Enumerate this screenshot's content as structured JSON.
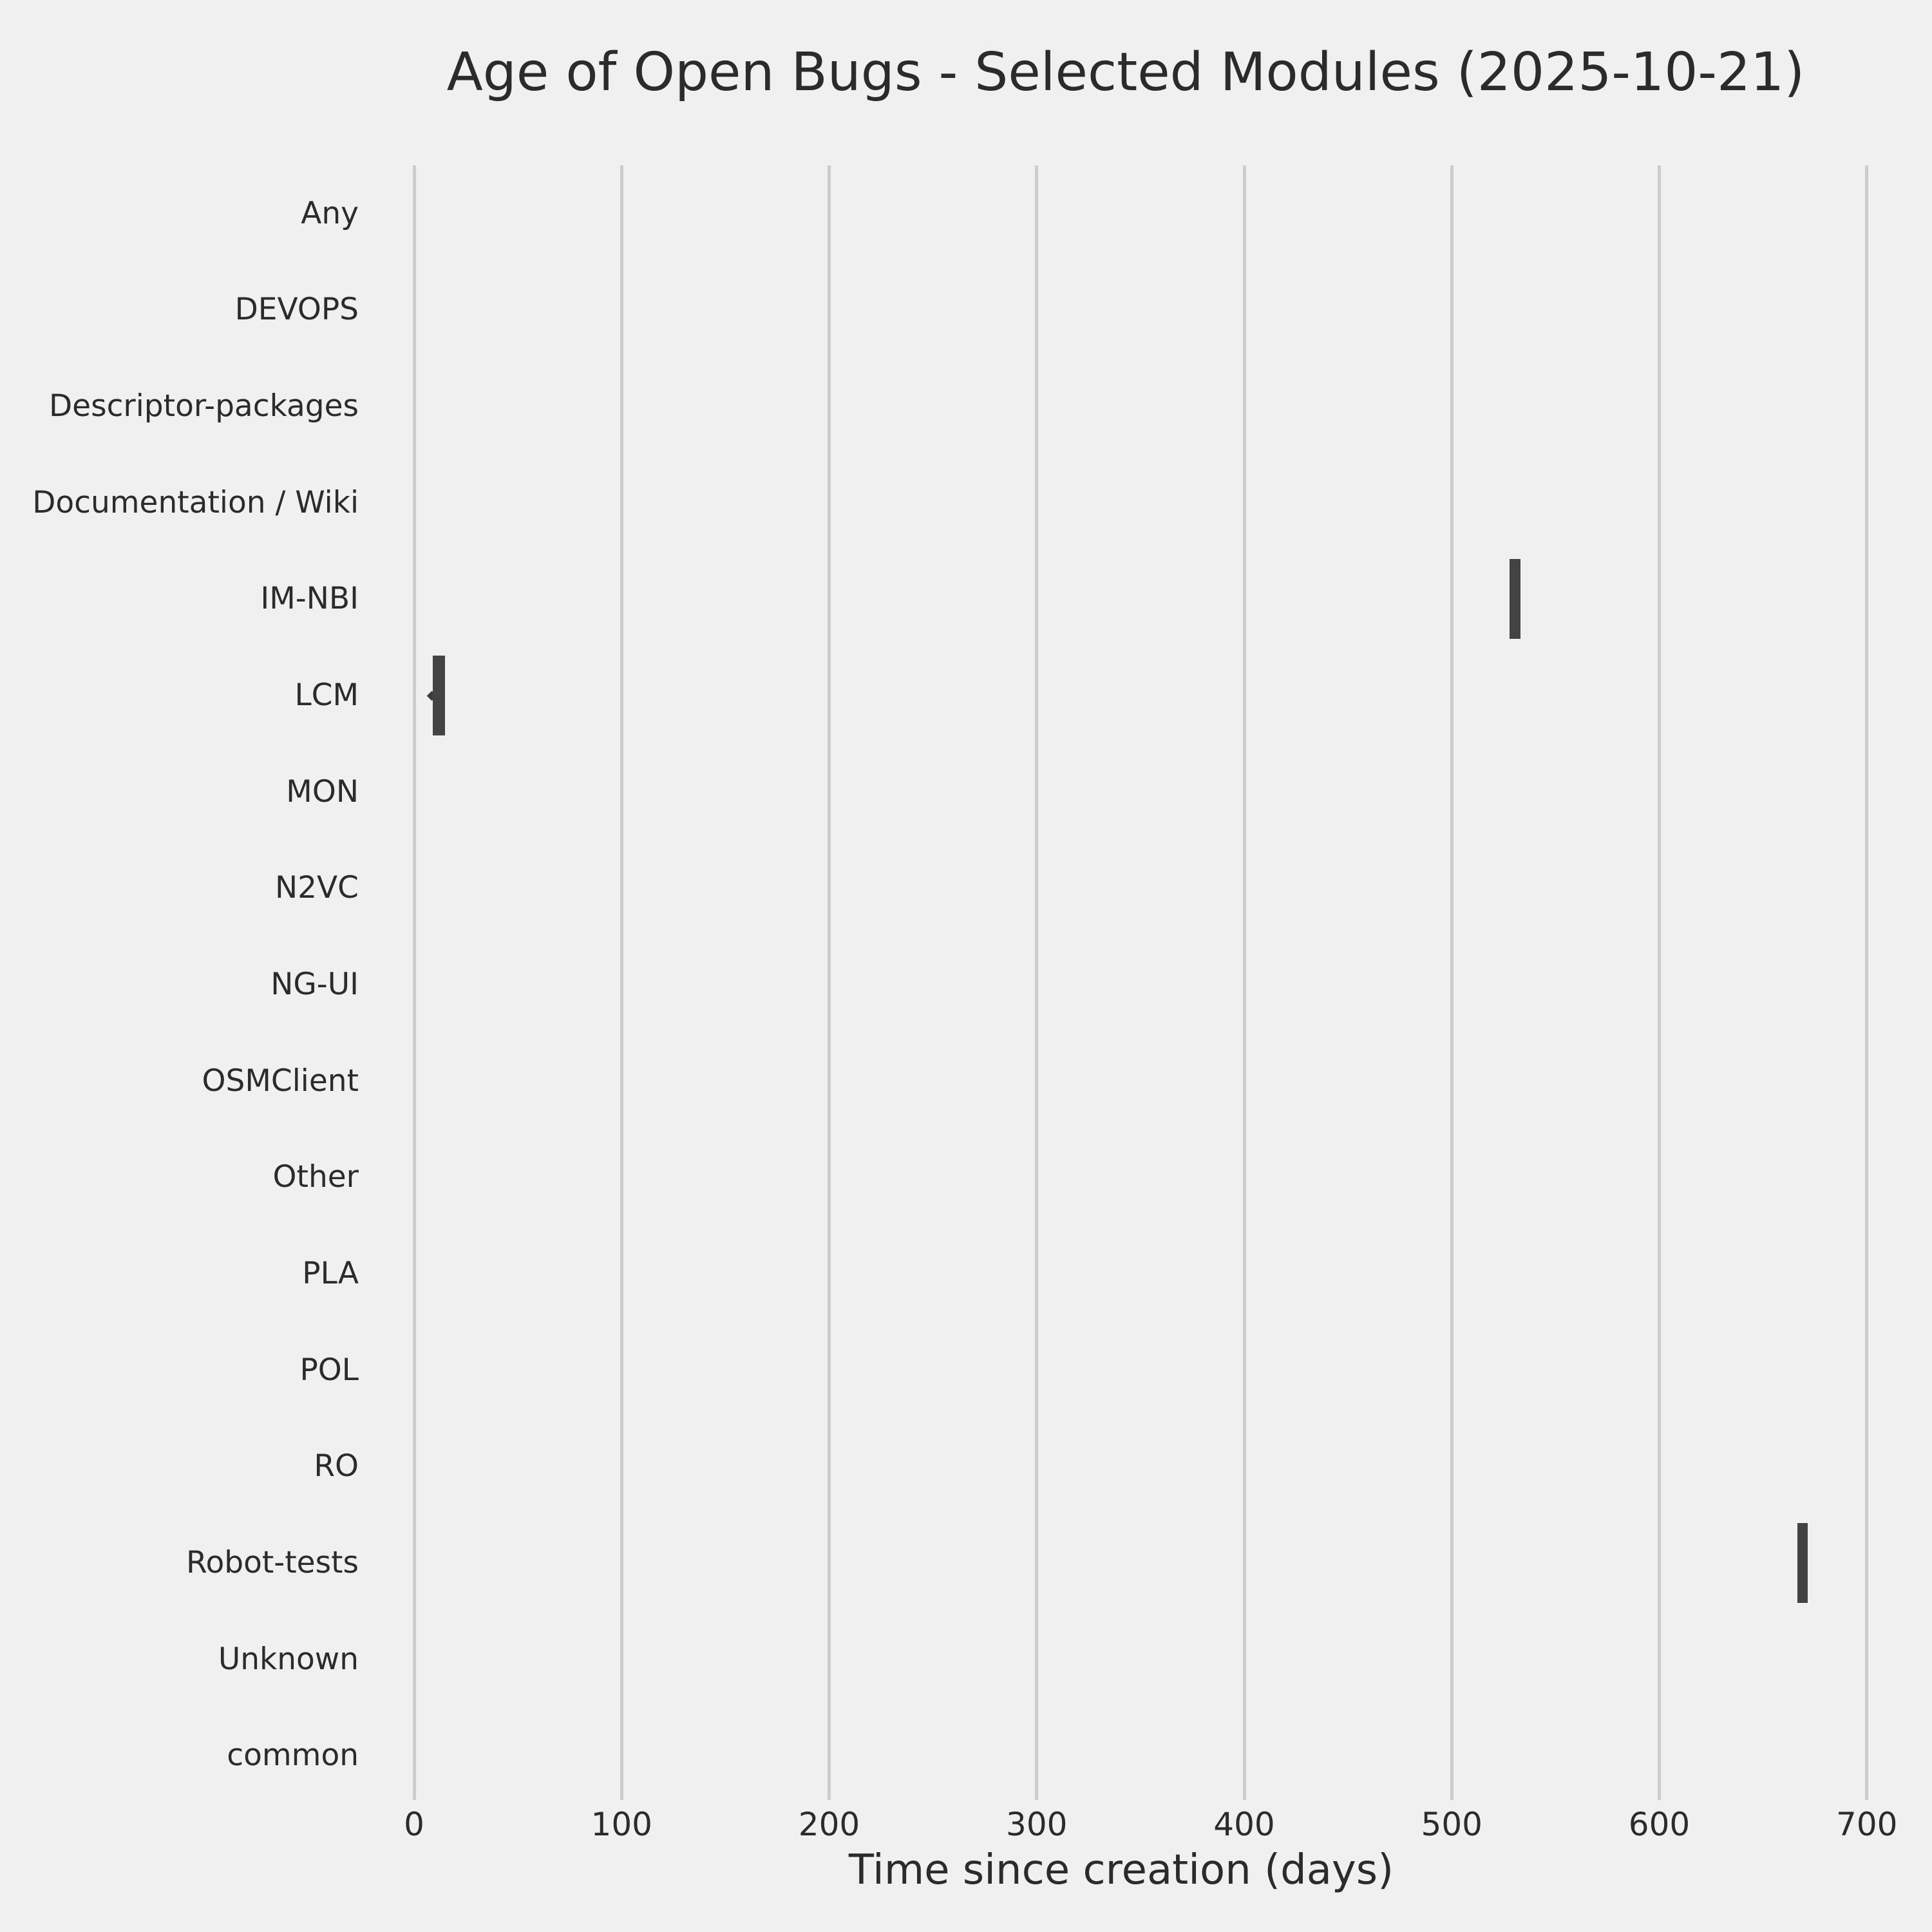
{
  "title": "Age of Open Bugs - Selected Modules (2025-10-21)",
  "xlabel": "Time since creation (days)",
  "chart_data": {
    "type": "boxplot",
    "orientation": "horizontal",
    "title": "Age of Open Bugs - Selected Modules (2025-10-21)",
    "xlabel": "Time since creation (days)",
    "ylabel": "",
    "categories": [
      "Any",
      "DEVOPS",
      "Descriptor-packages",
      "Documentation / Wiki",
      "IM-NBI",
      "LCM",
      "MON",
      "N2VC",
      "NG-UI",
      "OSMClient",
      "Other",
      "PLA",
      "POL",
      "RO",
      "Robot-tests",
      "Unknown",
      "common"
    ],
    "x_ticks": [
      0,
      100,
      200,
      300,
      400,
      500,
      600,
      700
    ],
    "xlim": [
      -25,
      705
    ],
    "grid": "vertical-only",
    "legend": "none",
    "boxes": [
      {
        "category": "IM-NBI",
        "whisker_low": 528,
        "q1": 528,
        "median": 530.5,
        "q3": 533,
        "whisker_high": 533,
        "fliers": []
      },
      {
        "category": "LCM",
        "whisker_low": 9,
        "q1": 9,
        "median": 12,
        "q3": 15,
        "whisker_high": 15,
        "fliers": [
          8.5
        ]
      },
      {
        "category": "Robot-tests",
        "whisker_low": 666.5,
        "q1": 666.5,
        "median": 669,
        "q3": 671.5,
        "whisker_high": 671.5,
        "fliers": []
      }
    ],
    "empty_categories": [
      "Any",
      "DEVOPS",
      "Descriptor-packages",
      "Documentation / Wiki",
      "MON",
      "N2VC",
      "NG-UI",
      "OSMClient",
      "Other",
      "PLA",
      "POL",
      "RO",
      "Unknown",
      "common"
    ],
    "colors": {
      "background": "#f0f0f0",
      "grid": "#cccccc",
      "box_fill": "#434343",
      "text": "#2b2b2b"
    }
  }
}
